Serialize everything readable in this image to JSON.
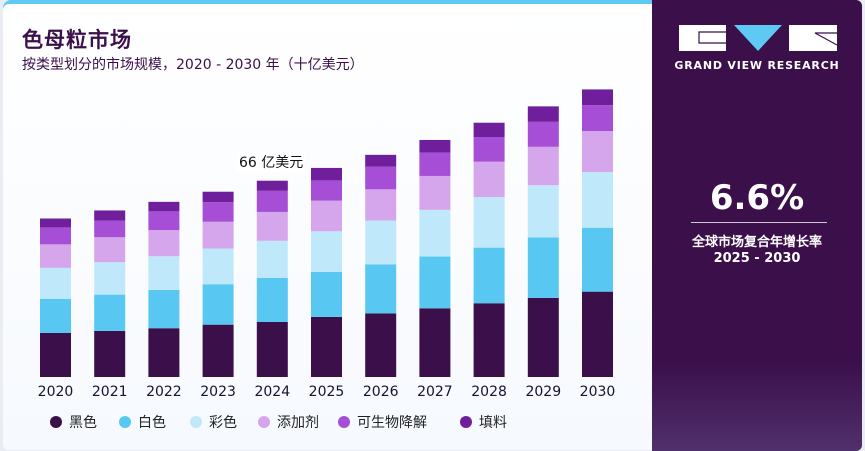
{
  "header": {
    "title": "色母粒市场",
    "subtitle": "按类型划分的市场规模，2020 - 2030 年（十亿美元）"
  },
  "annotation": "66 亿美元",
  "panel": {
    "brand": "GRAND VIEW RESEARCH",
    "cagr_value": "6.6%",
    "cagr_label": "全球市场复合年增长率",
    "cagr_years": "2025 - 2030"
  },
  "colors": {
    "panel_bg": "#3a0f4a",
    "accent": "#5ec9f2"
  },
  "chart_data": {
    "type": "bar",
    "stacked": true,
    "title": "色母粒市场",
    "subtitle": "按类型划分的市场规模，2020 - 2030 年（十亿美元）",
    "categories": [
      "2020",
      "2021",
      "2022",
      "2023",
      "2024",
      "2025",
      "2026",
      "2027",
      "2028",
      "2029",
      "2030"
    ],
    "series": [
      {
        "name": "黑色",
        "color": "#3a0f4a",
        "values": [
          1.48,
          1.55,
          1.64,
          1.76,
          1.85,
          2.02,
          2.14,
          2.31,
          2.48,
          2.66,
          2.87
        ]
      },
      {
        "name": "白色",
        "color": "#58c8f3",
        "values": [
          1.15,
          1.22,
          1.29,
          1.36,
          1.48,
          1.51,
          1.65,
          1.74,
          1.87,
          2.03,
          2.15
        ]
      },
      {
        "name": "彩色",
        "color": "#bfe8fb",
        "values": [
          1.04,
          1.09,
          1.13,
          1.2,
          1.25,
          1.37,
          1.47,
          1.57,
          1.7,
          1.76,
          1.87
        ]
      },
      {
        "name": "添加剂",
        "color": "#d5a6ec",
        "values": [
          0.79,
          0.84,
          0.88,
          0.9,
          0.97,
          1.03,
          1.05,
          1.14,
          1.19,
          1.29,
          1.38
        ]
      },
      {
        "name": "可生物降解",
        "color": "#a64fd6",
        "values": [
          0.57,
          0.56,
          0.63,
          0.66,
          0.71,
          0.68,
          0.76,
          0.79,
          0.83,
          0.84,
          0.87
        ]
      },
      {
        "name": "填料",
        "color": "#6f1f9c",
        "values": [
          0.3,
          0.34,
          0.32,
          0.35,
          0.34,
          0.42,
          0.4,
          0.42,
          0.48,
          0.52,
          0.53
        ]
      }
    ],
    "annotations": [
      {
        "category": "2024",
        "text": "66 亿美元",
        "value": 6.6
      }
    ],
    "legend_position": "bottom",
    "grid": false,
    "ylim": [
      0,
      10
    ]
  }
}
